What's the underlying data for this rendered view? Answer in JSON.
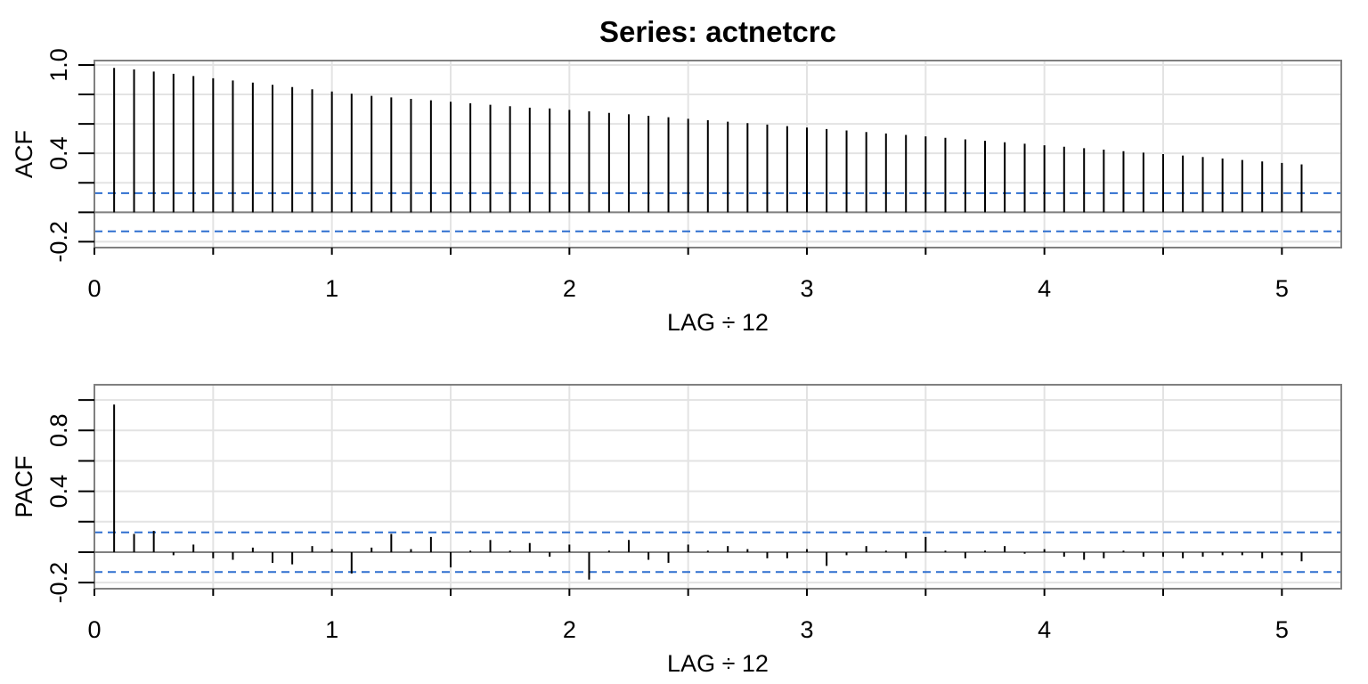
{
  "title": "Series:  actnetcrc",
  "chart_data": [
    {
      "type": "bar",
      "ylabel": "ACF",
      "xlabel": "LAG ÷ 12",
      "xlim": [
        0,
        5.25
      ],
      "ylim": [
        -0.24,
        1.03
      ],
      "yticks": [
        -0.2,
        0.4,
        1.0
      ],
      "ytick_labels": [
        "-0.2",
        "0.4",
        "1.0"
      ],
      "yminor": [
        0.0,
        0.2,
        0.6,
        0.8
      ],
      "xticks": [
        0,
        1,
        2,
        3,
        4,
        5
      ],
      "xtick_labels": [
        "0",
        "1",
        "2",
        "3",
        "4",
        "5"
      ],
      "xminor": [
        0.5,
        1.5,
        2.5,
        3.5,
        4.5
      ],
      "grid": true,
      "ci": 0.13,
      "lags": [
        0.083,
        0.167,
        0.25,
        0.333,
        0.417,
        0.5,
        0.583,
        0.667,
        0.75,
        0.833,
        0.917,
        1.0,
        1.083,
        1.167,
        1.25,
        1.333,
        1.417,
        1.5,
        1.583,
        1.667,
        1.75,
        1.833,
        1.917,
        2.0,
        2.083,
        2.167,
        2.25,
        2.333,
        2.417,
        2.5,
        2.583,
        2.667,
        2.75,
        2.833,
        2.917,
        3.0,
        3.083,
        3.167,
        3.25,
        3.333,
        3.417,
        3.5,
        3.583,
        3.667,
        3.75,
        3.833,
        3.917,
        4.0,
        4.083,
        4.167,
        4.25,
        4.333,
        4.417,
        4.5,
        4.583,
        4.667,
        4.75,
        4.833,
        4.917,
        5.0,
        5.083
      ],
      "values": [
        0.98,
        0.97,
        0.955,
        0.94,
        0.925,
        0.91,
        0.895,
        0.88,
        0.865,
        0.85,
        0.835,
        0.82,
        0.805,
        0.79,
        0.78,
        0.77,
        0.76,
        0.75,
        0.74,
        0.73,
        0.72,
        0.71,
        0.705,
        0.695,
        0.685,
        0.675,
        0.665,
        0.655,
        0.645,
        0.635,
        0.625,
        0.615,
        0.605,
        0.595,
        0.585,
        0.575,
        0.565,
        0.555,
        0.545,
        0.535,
        0.525,
        0.515,
        0.505,
        0.495,
        0.485,
        0.475,
        0.465,
        0.455,
        0.445,
        0.435,
        0.425,
        0.415,
        0.405,
        0.395,
        0.385,
        0.375,
        0.365,
        0.355,
        0.345,
        0.335,
        0.325
      ]
    },
    {
      "type": "bar",
      "ylabel": "PACF",
      "xlabel": "LAG ÷ 12",
      "xlim": [
        0,
        5.25
      ],
      "ylim": [
        -0.24,
        1.1
      ],
      "yticks": [
        -0.2,
        0.4,
        0.8
      ],
      "ytick_labels": [
        "-0.2",
        "0.4",
        "0.8"
      ],
      "yminor": [
        0.0,
        0.2,
        0.6,
        1.0
      ],
      "xticks": [
        0,
        1,
        2,
        3,
        4,
        5
      ],
      "xtick_labels": [
        "0",
        "1",
        "2",
        "3",
        "4",
        "5"
      ],
      "xminor": [
        0.5,
        1.5,
        2.5,
        3.5,
        4.5
      ],
      "grid": true,
      "ci": 0.13,
      "lags": [
        0.083,
        0.167,
        0.25,
        0.333,
        0.417,
        0.5,
        0.583,
        0.667,
        0.75,
        0.833,
        0.917,
        1.0,
        1.083,
        1.167,
        1.25,
        1.333,
        1.417,
        1.5,
        1.583,
        1.667,
        1.75,
        1.833,
        1.917,
        2.0,
        2.083,
        2.167,
        2.25,
        2.333,
        2.417,
        2.5,
        2.583,
        2.667,
        2.75,
        2.833,
        2.917,
        3.0,
        3.083,
        3.167,
        3.25,
        3.333,
        3.417,
        3.5,
        3.583,
        3.667,
        3.75,
        3.833,
        3.917,
        4.0,
        4.083,
        4.167,
        4.25,
        4.333,
        4.417,
        4.5,
        4.583,
        4.667,
        4.75,
        4.833,
        4.917,
        5.0,
        5.083
      ],
      "values": [
        0.97,
        0.12,
        0.14,
        -0.02,
        0.05,
        -0.04,
        -0.05,
        0.03,
        -0.07,
        -0.08,
        0.04,
        0.02,
        -0.14,
        0.03,
        0.12,
        0.02,
        0.1,
        -0.1,
        0.01,
        0.08,
        0.01,
        0.06,
        -0.03,
        0.05,
        -0.18,
        0.01,
        0.08,
        -0.05,
        -0.07,
        0.05,
        0.01,
        0.04,
        0.02,
        -0.04,
        -0.04,
        0.02,
        -0.09,
        -0.02,
        0.04,
        0.01,
        -0.04,
        0.1,
        0.01,
        -0.04,
        0.01,
        0.04,
        -0.01,
        0.02,
        -0.03,
        -0.05,
        -0.04,
        0.01,
        -0.03,
        -0.03,
        -0.04,
        -0.03,
        -0.02,
        -0.02,
        -0.04,
        -0.02,
        -0.06
      ]
    }
  ],
  "colors": {
    "frame": "#808080",
    "grid": "#e3e3e3",
    "spike": "#000000",
    "ci": "#2e6fcf",
    "zero": "#808080"
  }
}
